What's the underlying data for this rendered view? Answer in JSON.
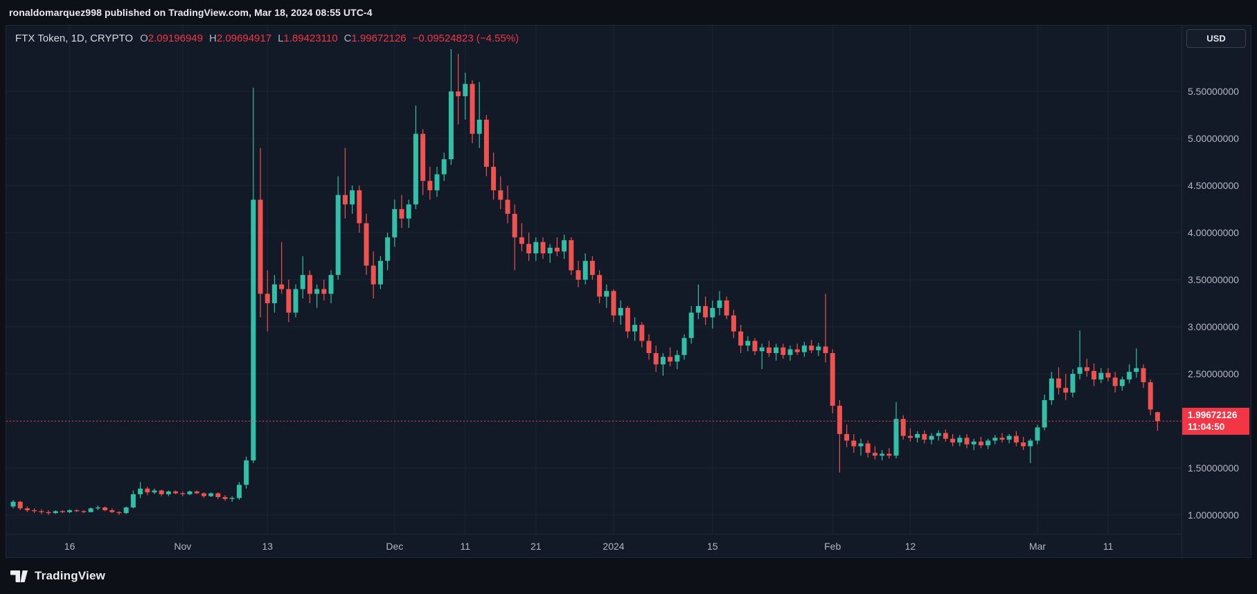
{
  "attribution": "ronaldomarquez998 published on TradingView.com, Mar 18, 2024 08:55 UTC-4",
  "header": {
    "title": "FTX Token, 1D, CRYPTO",
    "symbol": "FTX Token",
    "interval": "1D",
    "exchange": "CRYPTO",
    "o_label": "O",
    "open": "2.09196949",
    "h_label": "H",
    "high": "2.09694917",
    "l_label": "L",
    "low": "1.89423110",
    "c_label": "C",
    "close": "1.99672126",
    "change": "−0.09524823 (−4.55%)"
  },
  "price_scale": {
    "currency_button": "USD",
    "badge": {
      "price": "1.99672126",
      "countdown": "11:04:50"
    }
  },
  "footer": {
    "brand": "TradingView"
  },
  "colors": {
    "up": "#32bfa7",
    "down": "#f0524f",
    "accent_red": "#f23645",
    "chart_bg": "#131a27",
    "page_bg": "#0d1017",
    "grid": "#1c2433",
    "axis_text": "#b4b7c1"
  },
  "chart_data": {
    "type": "candlestick",
    "title": "FTX Token, 1D, CRYPTO",
    "currency": "USD",
    "interval": "1D",
    "start_date": "2023-10-08",
    "end_date": "2024-03-18",
    "price_range": [
      0.8,
      6.2
    ],
    "current_price": 1.99672126,
    "y_ticks": [
      1.0,
      1.5,
      2.0,
      2.5,
      3.0,
      3.5,
      4.0,
      4.5,
      5.0,
      5.5
    ],
    "x_ticks": [
      {
        "index": 8,
        "label": "16"
      },
      {
        "index": 24,
        "label": "Nov"
      },
      {
        "index": 36,
        "label": "13"
      },
      {
        "index": 54,
        "label": "Dec"
      },
      {
        "index": 64,
        "label": "11"
      },
      {
        "index": 74,
        "label": "21"
      },
      {
        "index": 85,
        "label": "2024"
      },
      {
        "index": 99,
        "label": "15"
      },
      {
        "index": 116,
        "label": "Feb"
      },
      {
        "index": 127,
        "label": "12"
      },
      {
        "index": 145,
        "label": "Mar"
      },
      {
        "index": 155,
        "label": "11"
      }
    ],
    "ohlc_format": [
      "open",
      "high",
      "low",
      "close"
    ],
    "candles": [
      [
        1.09,
        1.16,
        1.07,
        1.14
      ],
      [
        1.14,
        1.15,
        1.05,
        1.07
      ],
      [
        1.07,
        1.09,
        1.03,
        1.05
      ],
      [
        1.05,
        1.07,
        1.02,
        1.04
      ],
      [
        1.04,
        1.06,
        1.01,
        1.03
      ],
      [
        1.03,
        1.05,
        1.0,
        1.02
      ],
      [
        1.02,
        1.05,
        1.01,
        1.04
      ],
      [
        1.04,
        1.05,
        1.02,
        1.03
      ],
      [
        1.03,
        1.06,
        1.02,
        1.05
      ],
      [
        1.05,
        1.06,
        1.03,
        1.04
      ],
      [
        1.04,
        1.05,
        1.02,
        1.03
      ],
      [
        1.03,
        1.08,
        1.03,
        1.07
      ],
      [
        1.07,
        1.1,
        1.05,
        1.08
      ],
      [
        1.08,
        1.09,
        1.04,
        1.05
      ],
      [
        1.05,
        1.07,
        1.02,
        1.03
      ],
      [
        1.03,
        1.04,
        1.0,
        1.02
      ],
      [
        1.02,
        1.09,
        1.01,
        1.08
      ],
      [
        1.08,
        1.26,
        1.07,
        1.22
      ],
      [
        1.22,
        1.35,
        1.18,
        1.28
      ],
      [
        1.28,
        1.3,
        1.21,
        1.24
      ],
      [
        1.24,
        1.28,
        1.22,
        1.26
      ],
      [
        1.26,
        1.27,
        1.2,
        1.22
      ],
      [
        1.22,
        1.26,
        1.2,
        1.25
      ],
      [
        1.25,
        1.26,
        1.22,
        1.23
      ],
      [
        1.23,
        1.25,
        1.2,
        1.22
      ],
      [
        1.22,
        1.26,
        1.21,
        1.25
      ],
      [
        1.25,
        1.26,
        1.22,
        1.23
      ],
      [
        1.23,
        1.24,
        1.18,
        1.2
      ],
      [
        1.2,
        1.24,
        1.19,
        1.23
      ],
      [
        1.23,
        1.24,
        1.17,
        1.19
      ],
      [
        1.19,
        1.21,
        1.15,
        1.17
      ],
      [
        1.17,
        1.2,
        1.14,
        1.18
      ],
      [
        1.18,
        1.35,
        1.16,
        1.32
      ],
      [
        1.32,
        1.62,
        1.28,
        1.58
      ],
      [
        1.58,
        5.54,
        1.55,
        4.35
      ],
      [
        4.35,
        4.9,
        3.1,
        3.35
      ],
      [
        3.35,
        3.6,
        2.95,
        3.25
      ],
      [
        3.25,
        3.55,
        3.15,
        3.45
      ],
      [
        3.45,
        3.9,
        3.35,
        3.4
      ],
      [
        3.4,
        3.5,
        3.05,
        3.15
      ],
      [
        3.15,
        3.45,
        3.1,
        3.4
      ],
      [
        3.4,
        3.75,
        3.3,
        3.55
      ],
      [
        3.55,
        3.6,
        3.25,
        3.35
      ],
      [
        3.35,
        3.45,
        3.2,
        3.4
      ],
      [
        3.4,
        3.5,
        3.28,
        3.35
      ],
      [
        3.35,
        3.6,
        3.25,
        3.55
      ],
      [
        3.55,
        4.6,
        3.5,
        4.4
      ],
      [
        4.4,
        4.9,
        4.15,
        4.3
      ],
      [
        4.3,
        4.5,
        4.2,
        4.45
      ],
      [
        4.45,
        4.5,
        4.0,
        4.1
      ],
      [
        4.1,
        4.2,
        3.55,
        3.65
      ],
      [
        3.65,
        3.8,
        3.3,
        3.45
      ],
      [
        3.45,
        3.75,
        3.4,
        3.7
      ],
      [
        3.7,
        4.0,
        3.6,
        3.95
      ],
      [
        3.95,
        4.35,
        3.85,
        4.25
      ],
      [
        4.25,
        4.4,
        4.05,
        4.15
      ],
      [
        4.15,
        4.35,
        4.05,
        4.3
      ],
      [
        4.3,
        5.35,
        4.25,
        5.05
      ],
      [
        5.05,
        5.1,
        4.4,
        4.55
      ],
      [
        4.55,
        4.7,
        4.35,
        4.45
      ],
      [
        4.45,
        4.7,
        4.38,
        4.62
      ],
      [
        4.62,
        4.85,
        4.55,
        4.78
      ],
      [
        4.78,
        5.95,
        4.72,
        5.5
      ],
      [
        5.5,
        5.9,
        5.15,
        5.45
      ],
      [
        5.45,
        5.7,
        5.2,
        5.58
      ],
      [
        5.58,
        5.62,
        4.95,
        5.05
      ],
      [
        5.05,
        5.6,
        4.9,
        5.2
      ],
      [
        5.2,
        5.25,
        4.6,
        4.7
      ],
      [
        4.7,
        4.85,
        4.35,
        4.45
      ],
      [
        4.45,
        4.6,
        4.25,
        4.35
      ],
      [
        4.35,
        4.5,
        4.1,
        4.2
      ],
      [
        4.2,
        4.3,
        3.6,
        3.95
      ],
      [
        3.95,
        4.1,
        3.8,
        3.88
      ],
      [
        3.88,
        4.0,
        3.7,
        3.78
      ],
      [
        3.78,
        3.95,
        3.7,
        3.9
      ],
      [
        3.9,
        3.95,
        3.72,
        3.78
      ],
      [
        3.78,
        3.88,
        3.68,
        3.84
      ],
      [
        3.84,
        3.95,
        3.75,
        3.8
      ],
      [
        3.8,
        3.98,
        3.72,
        3.92
      ],
      [
        3.92,
        3.95,
        3.55,
        3.6
      ],
      [
        3.6,
        3.7,
        3.42,
        3.5
      ],
      [
        3.5,
        3.78,
        3.45,
        3.7
      ],
      [
        3.7,
        3.75,
        3.5,
        3.55
      ],
      [
        3.55,
        3.6,
        3.25,
        3.32
      ],
      [
        3.32,
        3.45,
        3.2,
        3.38
      ],
      [
        3.38,
        3.4,
        3.05,
        3.12
      ],
      [
        3.12,
        3.28,
        3.02,
        3.2
      ],
      [
        3.2,
        3.22,
        2.88,
        2.95
      ],
      [
        2.95,
        3.1,
        2.85,
        3.02
      ],
      [
        3.02,
        3.05,
        2.78,
        2.85
      ],
      [
        2.85,
        2.92,
        2.65,
        2.72
      ],
      [
        2.72,
        2.8,
        2.52,
        2.6
      ],
      [
        2.6,
        2.72,
        2.48,
        2.68
      ],
      [
        2.68,
        2.78,
        2.58,
        2.63
      ],
      [
        2.63,
        2.75,
        2.55,
        2.7
      ],
      [
        2.7,
        2.92,
        2.65,
        2.88
      ],
      [
        2.88,
        3.22,
        2.82,
        3.15
      ],
      [
        3.15,
        3.45,
        3.08,
        3.22
      ],
      [
        3.22,
        3.32,
        3.02,
        3.1
      ],
      [
        3.1,
        3.28,
        2.98,
        3.2
      ],
      [
        3.2,
        3.38,
        3.12,
        3.28
      ],
      [
        3.28,
        3.32,
        3.08,
        3.12
      ],
      [
        3.12,
        3.18,
        2.88,
        2.95
      ],
      [
        2.95,
        3.02,
        2.72,
        2.8
      ],
      [
        2.8,
        2.9,
        2.74,
        2.85
      ],
      [
        2.85,
        2.88,
        2.7,
        2.74
      ],
      [
        2.74,
        2.82,
        2.55,
        2.78
      ],
      [
        2.78,
        2.85,
        2.68,
        2.72
      ],
      [
        2.72,
        2.82,
        2.64,
        2.78
      ],
      [
        2.78,
        2.82,
        2.66,
        2.7
      ],
      [
        2.7,
        2.8,
        2.64,
        2.76
      ],
      [
        2.76,
        2.82,
        2.7,
        2.73
      ],
      [
        2.73,
        2.84,
        2.68,
        2.8
      ],
      [
        2.8,
        2.86,
        2.72,
        2.75
      ],
      [
        2.75,
        2.83,
        2.69,
        2.79
      ],
      [
        2.79,
        3.35,
        2.62,
        2.72
      ],
      [
        2.72,
        2.76,
        2.08,
        2.16
      ],
      [
        2.16,
        2.22,
        1.45,
        1.86
      ],
      [
        1.86,
        1.96,
        1.72,
        1.79
      ],
      [
        1.79,
        1.86,
        1.66,
        1.73
      ],
      [
        1.73,
        1.81,
        1.63,
        1.76
      ],
      [
        1.76,
        1.79,
        1.61,
        1.66
      ],
      [
        1.66,
        1.73,
        1.59,
        1.63
      ],
      [
        1.63,
        1.69,
        1.58,
        1.65
      ],
      [
        1.65,
        1.71,
        1.6,
        1.63
      ],
      [
        1.63,
        2.2,
        1.6,
        2.02
      ],
      [
        2.02,
        2.06,
        1.8,
        1.84
      ],
      [
        1.84,
        1.92,
        1.78,
        1.82
      ],
      [
        1.82,
        1.89,
        1.77,
        1.86
      ],
      [
        1.86,
        1.9,
        1.76,
        1.8
      ],
      [
        1.8,
        1.87,
        1.75,
        1.84
      ],
      [
        1.84,
        1.9,
        1.79,
        1.87
      ],
      [
        1.87,
        1.91,
        1.78,
        1.81
      ],
      [
        1.81,
        1.86,
        1.73,
        1.77
      ],
      [
        1.77,
        1.85,
        1.73,
        1.82
      ],
      [
        1.82,
        1.86,
        1.71,
        1.75
      ],
      [
        1.75,
        1.81,
        1.69,
        1.78
      ],
      [
        1.78,
        1.83,
        1.71,
        1.74
      ],
      [
        1.74,
        1.81,
        1.7,
        1.79
      ],
      [
        1.79,
        1.85,
        1.75,
        1.82
      ],
      [
        1.82,
        1.87,
        1.77,
        1.8
      ],
      [
        1.8,
        1.86,
        1.76,
        1.84
      ],
      [
        1.84,
        1.89,
        1.73,
        1.77
      ],
      [
        1.77,
        1.83,
        1.69,
        1.73
      ],
      [
        1.73,
        1.81,
        1.55,
        1.79
      ],
      [
        1.79,
        1.96,
        1.75,
        1.93
      ],
      [
        1.93,
        2.28,
        1.9,
        2.22
      ],
      [
        2.22,
        2.52,
        2.17,
        2.45
      ],
      [
        2.45,
        2.57,
        2.28,
        2.35
      ],
      [
        2.35,
        2.5,
        2.22,
        2.3
      ],
      [
        2.3,
        2.55,
        2.25,
        2.5
      ],
      [
        2.5,
        2.96,
        2.44,
        2.57
      ],
      [
        2.57,
        2.66,
        2.47,
        2.53
      ],
      [
        2.53,
        2.61,
        2.37,
        2.44
      ],
      [
        2.44,
        2.56,
        2.4,
        2.51
      ],
      [
        2.51,
        2.56,
        2.42,
        2.46
      ],
      [
        2.46,
        2.52,
        2.3,
        2.37
      ],
      [
        2.37,
        2.47,
        2.32,
        2.44
      ],
      [
        2.44,
        2.6,
        2.4,
        2.52
      ],
      [
        2.52,
        2.77,
        2.46,
        2.56
      ],
      [
        2.56,
        2.6,
        2.35,
        2.41
      ],
      [
        2.41,
        2.44,
        2.06,
        2.12
      ],
      [
        2.09196949,
        2.09694917,
        1.8942311,
        1.99672126
      ]
    ]
  }
}
